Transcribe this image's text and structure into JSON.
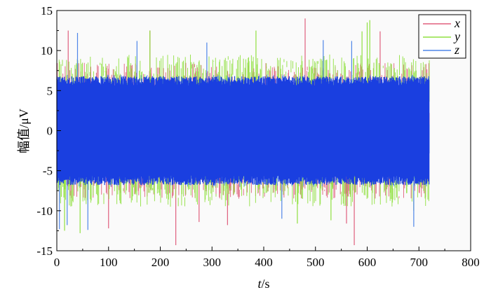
{
  "chart_data": {
    "type": "line",
    "title": "",
    "xlabel_italic": "t",
    "xlabel_unit": "/s",
    "ylabel": "幅值/μV",
    "xlim": [
      0,
      800
    ],
    "ylim": [
      -15,
      15
    ],
    "xticks": [
      0,
      100,
      200,
      300,
      400,
      500,
      600,
      700,
      800
    ],
    "yticks": [
      -15,
      -10,
      -5,
      0,
      5,
      10,
      15
    ],
    "xtick_labels": [
      "0",
      "100",
      "200",
      "300",
      "400",
      "500",
      "600",
      "700",
      "800"
    ],
    "ytick_labels": [
      "-15",
      "-10",
      "-5",
      "0",
      "5",
      "10",
      "15"
    ],
    "grid": false,
    "legend_position": "top-right",
    "data_span_x": [
      0,
      720
    ],
    "series": [
      {
        "name": "x",
        "color": "#e0607e",
        "typical_range": [
          -8.5,
          8.5
        ],
        "peaks": [
          [
            22,
            12.5
          ],
          [
            180,
            12.5
          ],
          [
            480,
            14.0
          ],
          [
            625,
            12.4
          ],
          [
            230,
            -14.3
          ],
          [
            575,
            -14.3
          ],
          [
            275,
            -11.4
          ],
          [
            330,
            -11.8
          ],
          [
            560,
            -11.6
          ],
          [
            100,
            -12.2
          ]
        ]
      },
      {
        "name": "y",
        "color": "#90e040",
        "typical_range": [
          -9.5,
          9.5
        ],
        "peaks": [
          [
            180,
            12.5
          ],
          [
            385,
            12.5
          ],
          [
            590,
            12.4
          ],
          [
            600,
            13.5
          ],
          [
            605,
            13.8
          ],
          [
            15,
            -12.5
          ],
          [
            45,
            -12.8
          ],
          [
            465,
            -11.6
          ],
          [
            530,
            -11.2
          ],
          [
            690,
            -10.0
          ]
        ]
      },
      {
        "name": "z",
        "color": "#4f86e8",
        "typical_range": [
          -7.0,
          7.0
        ],
        "peaks": [
          [
            40,
            12.2
          ],
          [
            155,
            11.2
          ],
          [
            290,
            11.0
          ],
          [
            515,
            11.3
          ],
          [
            570,
            11.2
          ],
          [
            5,
            -12.3
          ],
          [
            20,
            -11.8
          ],
          [
            60,
            -12.4
          ],
          [
            690,
            -12.0
          ],
          [
            435,
            -11.0
          ]
        ]
      }
    ],
    "core_band": [
      -6.8,
      6.8
    ],
    "core_color": "#1a3fe0"
  }
}
